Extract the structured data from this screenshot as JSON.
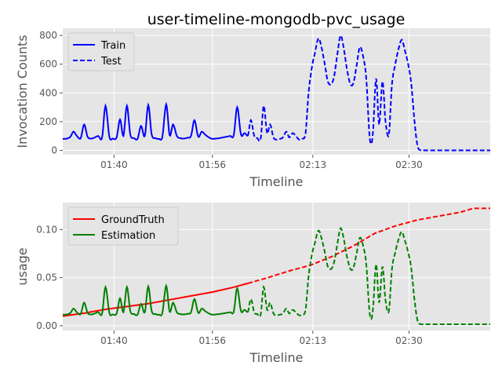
{
  "title": "user-timeline-mongodb-pvc_usage",
  "colors": {
    "train": "#0000ff",
    "groundtruth": "#ff0000",
    "estimation": "#008000",
    "panel_bg": "#e5e5e5",
    "grid": "#ffffff",
    "text": "#555555"
  },
  "chart_data": [
    {
      "type": "line",
      "title": "user-timeline-mongodb-pvc_usage",
      "xlabel": "Timeline",
      "ylabel": "Invocation Counts",
      "xlim": [
        0,
        100
      ],
      "ylim": [
        -30,
        850
      ],
      "xticks": [
        {
          "x": 12,
          "label": "01:40"
        },
        {
          "x": 35,
          "label": "01:56"
        },
        {
          "x": 58.5,
          "label": "02:13"
        },
        {
          "x": 81,
          "label": "02:30"
        }
      ],
      "yticks": [
        0,
        200,
        400,
        600,
        800
      ],
      "grid": true,
      "legend": "top-left",
      "series": [
        {
          "name": "Train",
          "style": "solid",
          "x": [
            0,
            1,
            1.8,
            2.5,
            3.3,
            4.2,
            5.0,
            5.8,
            6.7,
            7.5,
            8.3,
            9.2,
            10.0,
            10.9,
            11.7,
            12.6,
            13.4,
            14.2,
            15.0,
            15.8,
            16.7,
            17.5,
            18.3,
            19.2,
            20.0,
            20.8,
            21.7,
            22.5,
            23.3,
            24.2,
            25.0,
            25.8,
            26.7,
            27.5,
            28.3,
            29.2,
            30.0,
            30.8,
            31.7,
            32.5,
            33.3,
            34.2,
            35.0,
            35.8,
            36.6,
            37.5,
            38.3,
            39.2,
            40.0,
            40.8,
            41.7,
            42.5,
            43.3
          ],
          "y": [
            80,
            82,
            95,
            130,
            100,
            85,
            180,
            95,
            82,
            90,
            100,
            88,
            310,
            95,
            82,
            90,
            215,
            100,
            310,
            110,
            85,
            80,
            170,
            100,
            315,
            110,
            85,
            80,
            95,
            320,
            105,
            180,
            100,
            85,
            82,
            88,
            100,
            210,
            95,
            130,
            110,
            90,
            80,
            82,
            85,
            90,
            95,
            100,
            105,
            300,
            110,
            120,
            100
          ]
        },
        {
          "name": "Test",
          "style": "dashed",
          "x": [
            43.3,
            44.0,
            44.8,
            45.5,
            46.3,
            47.0,
            47.8,
            48.5,
            49.3,
            50.0,
            50.8,
            51.5,
            52.3,
            53.0,
            53.8,
            54.5,
            55.3,
            56.0,
            56.8,
            57.5,
            58.3,
            59.0,
            59.8,
            60.5,
            61.3,
            62.0,
            62.8,
            63.5,
            64.3,
            65.0,
            65.8,
            66.5,
            67.3,
            68.0,
            68.8,
            69.5,
            70.3,
            71.0,
            71.8,
            72.5,
            73.3,
            74.0,
            74.8,
            75.5,
            76.3,
            77.0,
            77.8,
            78.5,
            79.3,
            80.0,
            80.8,
            81.5,
            82.3,
            83.0,
            83.8,
            84.5,
            85.3,
            86.0,
            86.8,
            87.5,
            88.3,
            89.0,
            89.8,
            90.5,
            91.3,
            92.0,
            92.8,
            93.5,
            94.3,
            95.0,
            95.8,
            96.5,
            97.3,
            98.0,
            98.8,
            99.5,
            100
          ],
          "y": [
            100,
            210,
            100,
            85,
            80,
            310,
            120,
            180,
            90,
            75,
            80,
            90,
            130,
            90,
            120,
            100,
            75,
            80,
            120,
            400,
            580,
            680,
            780,
            720,
            600,
            480,
            460,
            520,
            680,
            800,
            700,
            560,
            460,
            470,
            600,
            720,
            650,
            500,
            90,
            100,
            500,
            180,
            480,
            200,
            110,
            460,
            600,
            700,
            770,
            700,
            600,
            470,
            200,
            30,
            0,
            0,
            0,
            0,
            0,
            0,
            0,
            0,
            0,
            0,
            0,
            0,
            0,
            0,
            0,
            0,
            0,
            0,
            0,
            0,
            0,
            0,
            0
          ]
        }
      ]
    },
    {
      "type": "line",
      "xlabel": "Timeline",
      "ylabel": "usage",
      "xlim": [
        0,
        100
      ],
      "ylim": [
        -0.005,
        0.128
      ],
      "xticks": [
        {
          "x": 12,
          "label": "01:40"
        },
        {
          "x": 35,
          "label": "01:56"
        },
        {
          "x": 58.5,
          "label": "02:13"
        },
        {
          "x": 81,
          "label": "02:30"
        }
      ],
      "yticks": [
        "0.00",
        "0.05",
        "0.10"
      ],
      "grid": true,
      "legend": "top-left",
      "series": [
        {
          "name": "GroundTruth",
          "style": "solid-then-dashed",
          "x": [
            0,
            5,
            10,
            15,
            20,
            25,
            30,
            35,
            40,
            43.3,
            48,
            53,
            58,
            63,
            68,
            73,
            78,
            83,
            88,
            93,
            96,
            100
          ],
          "y": [
            0.01,
            0.013,
            0.017,
            0.02,
            0.023,
            0.027,
            0.031,
            0.035,
            0.04,
            0.044,
            0.05,
            0.057,
            0.063,
            0.072,
            0.083,
            0.096,
            0.104,
            0.11,
            0.114,
            0.118,
            0.122,
            0.122
          ],
          "solid_until": 43.3
        },
        {
          "name": "Estimation",
          "style": "solid-then-dashed",
          "solid_until": 43.3
        }
      ]
    }
  ]
}
